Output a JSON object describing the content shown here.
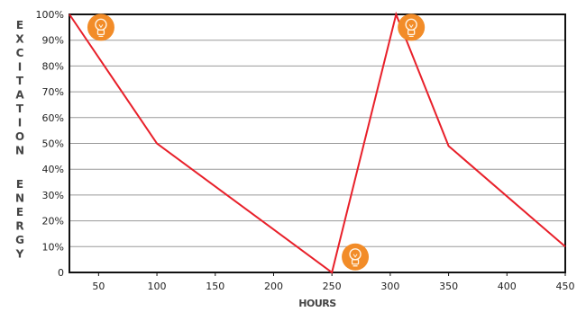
{
  "chart_data": {
    "type": "line",
    "xlabel": "HOURS",
    "ylabel": "EXCITATION ENERGY",
    "xlim": [
      25,
      450
    ],
    "ylim": [
      0,
      100
    ],
    "x_ticks": [
      "50",
      "100",
      "150",
      "200",
      "250",
      "300",
      "350",
      "400",
      "450"
    ],
    "y_ticks": [
      "0",
      "10%",
      "20%",
      "30%",
      "40%",
      "50%",
      "60%",
      "70%",
      "80%",
      "90%",
      "100%"
    ],
    "grid": "horizontal",
    "series": [
      {
        "color": "#e8202a",
        "points": [
          {
            "x": 25,
            "y": 100
          },
          {
            "x": 100,
            "y": 50
          },
          {
            "x": 250,
            "y": 0
          },
          {
            "x": 305,
            "y": 100
          },
          {
            "x": 350,
            "y": 49
          },
          {
            "x": 450,
            "y": 10
          }
        ]
      }
    ],
    "markers": [
      {
        "icon": "lightbulb-icon",
        "x": 52,
        "y": 95,
        "color": "#f28c28"
      },
      {
        "icon": "lightbulb-icon",
        "x": 318,
        "y": 95,
        "color": "#f28c28"
      },
      {
        "icon": "lightbulb-icon",
        "x": 270,
        "y": 6,
        "color": "#f28c28"
      }
    ]
  }
}
